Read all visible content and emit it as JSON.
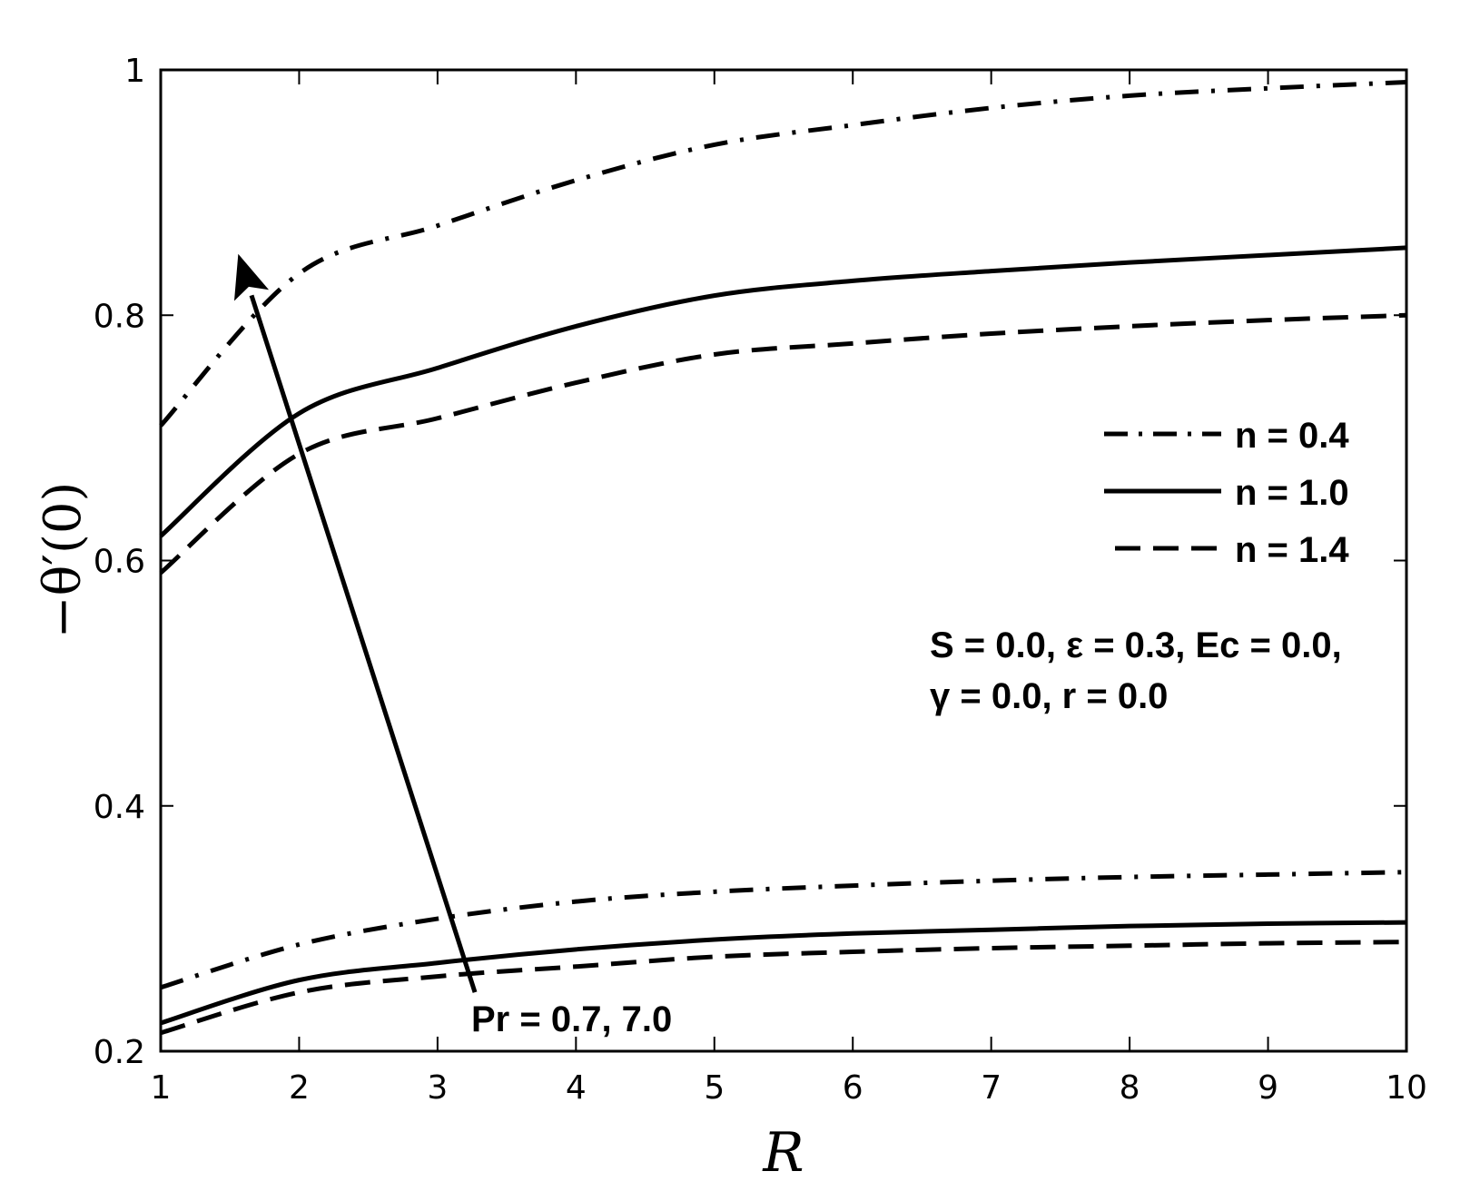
{
  "chart_data": {
    "type": "line",
    "title": "",
    "xlabel": "R",
    "ylabel": "−θ′(0)",
    "xlim": [
      1,
      10
    ],
    "ylim": [
      0.2,
      1.0
    ],
    "xticks": [
      1,
      2,
      3,
      4,
      5,
      6,
      7,
      8,
      9,
      10
    ],
    "xtick_labels": [
      "1",
      "2",
      "3",
      "4",
      "5",
      "6",
      "7",
      "8",
      "9",
      "10"
    ],
    "yticks": [
      0.2,
      0.4,
      0.6,
      0.8,
      1.0
    ],
    "ytick_labels": [
      "0.2",
      "0.4",
      "0.6",
      "0.8",
      "1"
    ],
    "grid": false,
    "legend_position": "right, mid-upper inside plot",
    "x": [
      1,
      2,
      3,
      4,
      5,
      6,
      7,
      8,
      9,
      10
    ],
    "series": [
      {
        "name": "n = 0.4",
        "Pr": 7.0,
        "style": "dash-dot",
        "values": [
          0.71,
          0.834,
          0.873,
          0.91,
          0.939,
          0.955,
          0.969,
          0.979,
          0.985,
          0.99
        ]
      },
      {
        "name": "n = 1.0",
        "Pr": 7.0,
        "style": "solid",
        "values": [
          0.62,
          0.72,
          0.757,
          0.791,
          0.816,
          0.828,
          0.836,
          0.843,
          0.849,
          0.855
        ]
      },
      {
        "name": "n = 1.4",
        "Pr": 7.0,
        "style": "dashed",
        "values": [
          0.59,
          0.687,
          0.716,
          0.745,
          0.768,
          0.777,
          0.785,
          0.791,
          0.796,
          0.8
        ]
      },
      {
        "name": "n = 0.4",
        "Pr": 0.7,
        "style": "dash-dot",
        "values": [
          0.252,
          0.287,
          0.308,
          0.322,
          0.33,
          0.335,
          0.339,
          0.342,
          0.344,
          0.346
        ]
      },
      {
        "name": "n = 1.0",
        "Pr": 0.7,
        "style": "solid",
        "values": [
          0.223,
          0.258,
          0.272,
          0.283,
          0.291,
          0.296,
          0.299,
          0.302,
          0.304,
          0.305
        ]
      },
      {
        "name": "n = 1.4",
        "Pr": 0.7,
        "style": "dashed",
        "values": [
          0.215,
          0.248,
          0.261,
          0.269,
          0.277,
          0.281,
          0.284,
          0.286,
          0.288,
          0.289
        ]
      }
    ],
    "legend": [
      {
        "label": "n = 0.4",
        "style": "dash-dot"
      },
      {
        "label": "n = 1.0",
        "style": "solid"
      },
      {
        "label": "n = 1.4",
        "style": "dashed"
      }
    ],
    "annotations": {
      "params_line1": "S = 0.0, ε = 0.3, Ec = 0.0,",
      "params_line2": "γ = 0.0, r = 0.0",
      "arrow_label": "Pr = 0.7, 7.0",
      "arrow": {
        "from": [
          3.27,
          0.248
        ],
        "to": [
          1.56,
          0.85
        ]
      }
    },
    "colors": {
      "line": "#000000",
      "background": "#ffffff"
    }
  }
}
